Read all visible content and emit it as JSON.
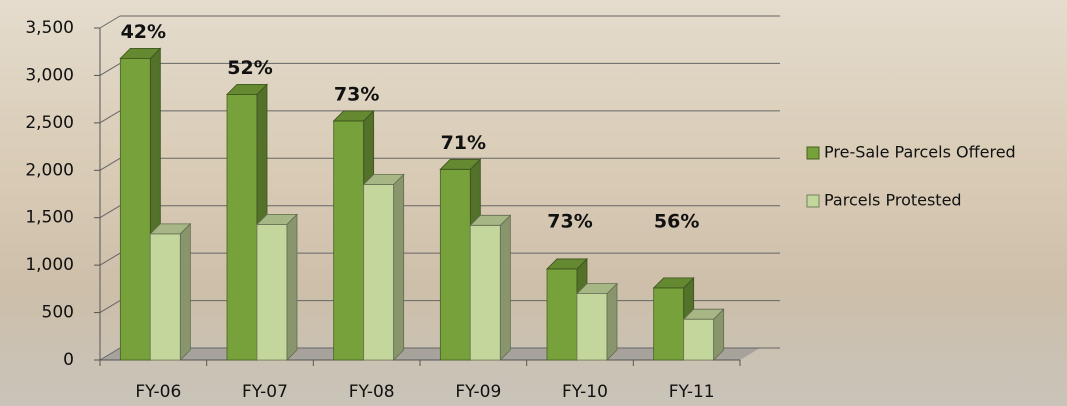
{
  "chart_data": {
    "type": "bar3d",
    "categories": [
      "FY-06",
      "FY-07",
      "FY-08",
      "FY-09",
      "FY-10",
      "FY-11"
    ],
    "series": [
      {
        "name": "Pre-Sale Parcels Offered",
        "color": "#77a13a",
        "values": [
          3180,
          2800,
          2520,
          2010,
          960,
          760
        ]
      },
      {
        "name": "Parcels Protested",
        "color": "#c3d69b",
        "values": [
          1330,
          1430,
          1850,
          1420,
          700,
          430
        ]
      }
    ],
    "annotations": [
      "42%",
      "52%",
      "73%",
      "71%",
      "73%",
      "56%"
    ],
    "ylim": [
      0,
      3500
    ],
    "yticks": [
      0,
      {
        "value": 500,
        "label": "500"
      },
      {
        "value": 1000,
        "label": "1,000"
      },
      {
        "value": 1500,
        "label": "1,500"
      },
      {
        "value": 2000,
        "label": "2,000"
      },
      {
        "value": 2500,
        "label": "2,500"
      },
      {
        "value": 3000,
        "label": "3,000"
      },
      {
        "value": 3500,
        "label": "3,500"
      }
    ],
    "grid": true,
    "legend": "right"
  }
}
